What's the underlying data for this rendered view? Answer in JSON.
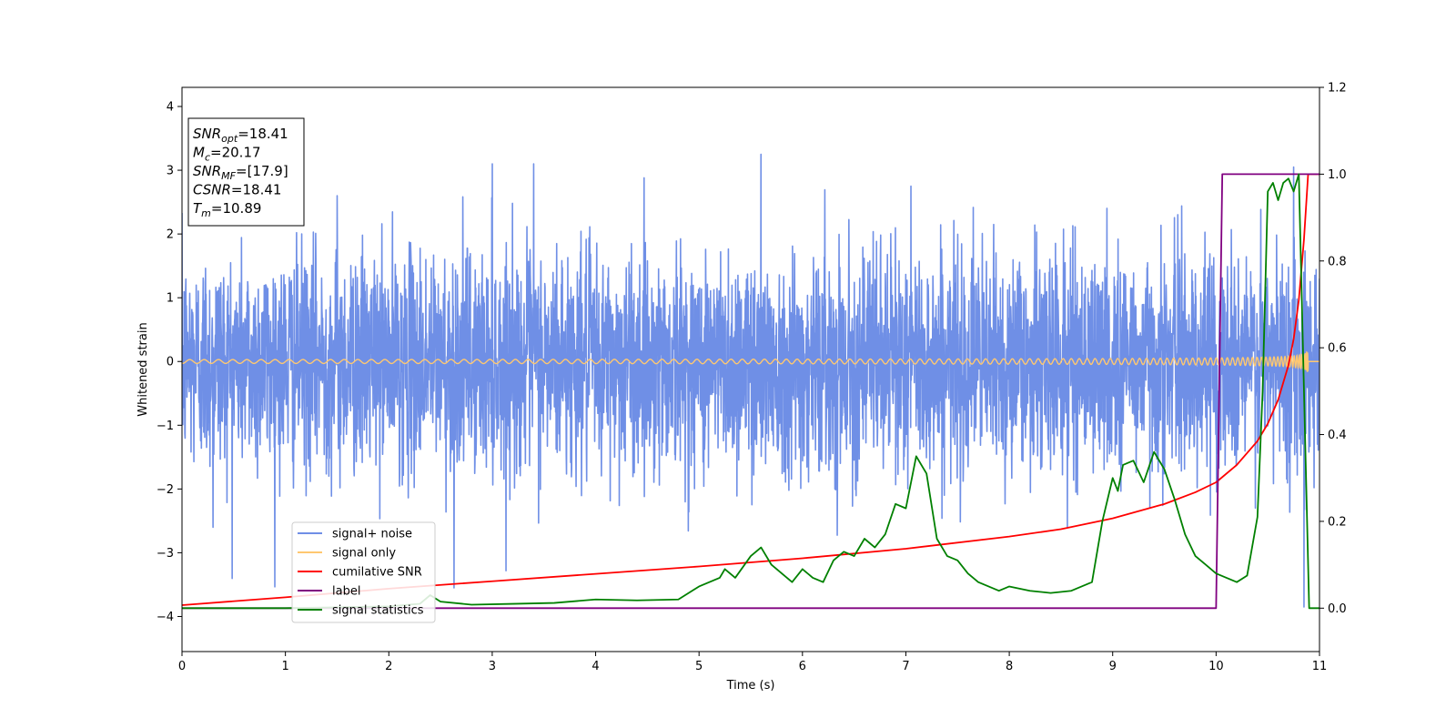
{
  "chart_data": {
    "type": "line",
    "xlabel": "Time (s)",
    "ylabel": "Whitened strain",
    "xlim": [
      0,
      11
    ],
    "ylim": [
      -4.55,
      4.3
    ],
    "y2lim": [
      -0.1,
      1.2
    ],
    "x_ticks": [
      0,
      1,
      2,
      3,
      4,
      5,
      6,
      7,
      8,
      9,
      10,
      11
    ],
    "y_ticks": [
      -4,
      -3,
      -2,
      -1,
      0,
      1,
      2,
      3,
      4
    ],
    "y2_ticks": [
      0.0,
      0.2,
      0.4,
      0.6,
      0.8,
      1.0,
      1.2
    ],
    "legend_position": "lower-left",
    "annotation": {
      "lines": [
        {
          "sym": "SNR",
          "sub": "opt",
          "text": "=18.41"
        },
        {
          "sym": "M",
          "sub": "c",
          "text": "=20.17"
        },
        {
          "sym": "SNR",
          "sub": "MF",
          "text": "=[17.9]"
        },
        {
          "sym": "CSNR",
          "sub": "",
          "text": "=18.41"
        },
        {
          "sym": "T",
          "sub": "m",
          "text": "=10.89"
        }
      ]
    },
    "series": [
      {
        "name": "signal+ noise",
        "color": "#6f8fe6",
        "axis": "left",
        "kind": "noise",
        "x_range": [
          0,
          11
        ],
        "amplitude_std": 0.85,
        "peaks": [
          [
            1.5,
            2.6
          ],
          [
            3.0,
            3.1
          ],
          [
            3.4,
            3.1
          ],
          [
            5.6,
            3.25
          ],
          [
            7.05,
            2.75
          ],
          [
            10.75,
            3.05
          ],
          [
            2.63,
            -3.55
          ],
          [
            10.85,
            -3.85
          ],
          [
            0.3,
            -2.6
          ]
        ]
      },
      {
        "name": "signal only",
        "color": "#ffc870",
        "axis": "left",
        "kind": "chirp",
        "t_merge": 10.89,
        "amp_start": 0.03,
        "amp_end": 2.95
      },
      {
        "name": "cumilative SNR",
        "color": "#ff0000",
        "axis": "right",
        "x": [
          0,
          1,
          2,
          3,
          4,
          5,
          6,
          7,
          8,
          8.5,
          9,
          9.5,
          9.8,
          10,
          10.2,
          10.4,
          10.5,
          10.6,
          10.7,
          10.75,
          10.8,
          10.85,
          10.89,
          11
        ],
        "values": [
          0.007,
          0.025,
          0.045,
          0.062,
          0.079,
          0.096,
          0.115,
          0.137,
          0.165,
          0.182,
          0.207,
          0.24,
          0.267,
          0.29,
          0.33,
          0.385,
          0.425,
          0.48,
          0.56,
          0.62,
          0.71,
          0.85,
          1.0,
          1.0
        ]
      },
      {
        "name": "label",
        "color": "#800080",
        "axis": "right",
        "x": [
          0,
          10.0,
          10.06,
          11
        ],
        "values": [
          0,
          0,
          1,
          1
        ]
      },
      {
        "name": "signal statistics",
        "color": "#008000",
        "axis": "right",
        "x": [
          0,
          0.5,
          1.0,
          1.5,
          2.0,
          2.3,
          2.4,
          2.5,
          2.8,
          3.2,
          3.6,
          4.0,
          4.4,
          4.8,
          5.0,
          5.2,
          5.25,
          5.35,
          5.5,
          5.6,
          5.7,
          5.9,
          6.0,
          6.1,
          6.2,
          6.3,
          6.4,
          6.5,
          6.6,
          6.7,
          6.8,
          6.9,
          7.0,
          7.1,
          7.2,
          7.3,
          7.4,
          7.5,
          7.6,
          7.7,
          7.9,
          8.0,
          8.2,
          8.4,
          8.6,
          8.8,
          8.9,
          9.0,
          9.05,
          9.1,
          9.2,
          9.3,
          9.4,
          9.5,
          9.6,
          9.7,
          9.8,
          9.9,
          10.0,
          10.1,
          10.2,
          10.3,
          10.4,
          10.45,
          10.5,
          10.55,
          10.6,
          10.65,
          10.7,
          10.75,
          10.8,
          10.85,
          10.9,
          10.95,
          11.0
        ],
        "values": [
          0.0,
          0.0,
          0.0,
          0.002,
          0.004,
          0.01,
          0.03,
          0.015,
          0.008,
          0.01,
          0.012,
          0.02,
          0.018,
          0.02,
          0.05,
          0.07,
          0.09,
          0.07,
          0.12,
          0.14,
          0.1,
          0.06,
          0.09,
          0.07,
          0.06,
          0.11,
          0.13,
          0.12,
          0.16,
          0.14,
          0.17,
          0.24,
          0.23,
          0.35,
          0.31,
          0.16,
          0.12,
          0.11,
          0.08,
          0.06,
          0.04,
          0.05,
          0.04,
          0.035,
          0.04,
          0.06,
          0.2,
          0.3,
          0.27,
          0.33,
          0.34,
          0.29,
          0.36,
          0.32,
          0.25,
          0.17,
          0.12,
          0.1,
          0.08,
          0.07,
          0.06,
          0.075,
          0.21,
          0.5,
          0.96,
          0.98,
          0.94,
          0.98,
          0.99,
          0.96,
          1.0,
          0.5,
          0.0,
          0.0,
          0.0
        ]
      }
    ]
  }
}
